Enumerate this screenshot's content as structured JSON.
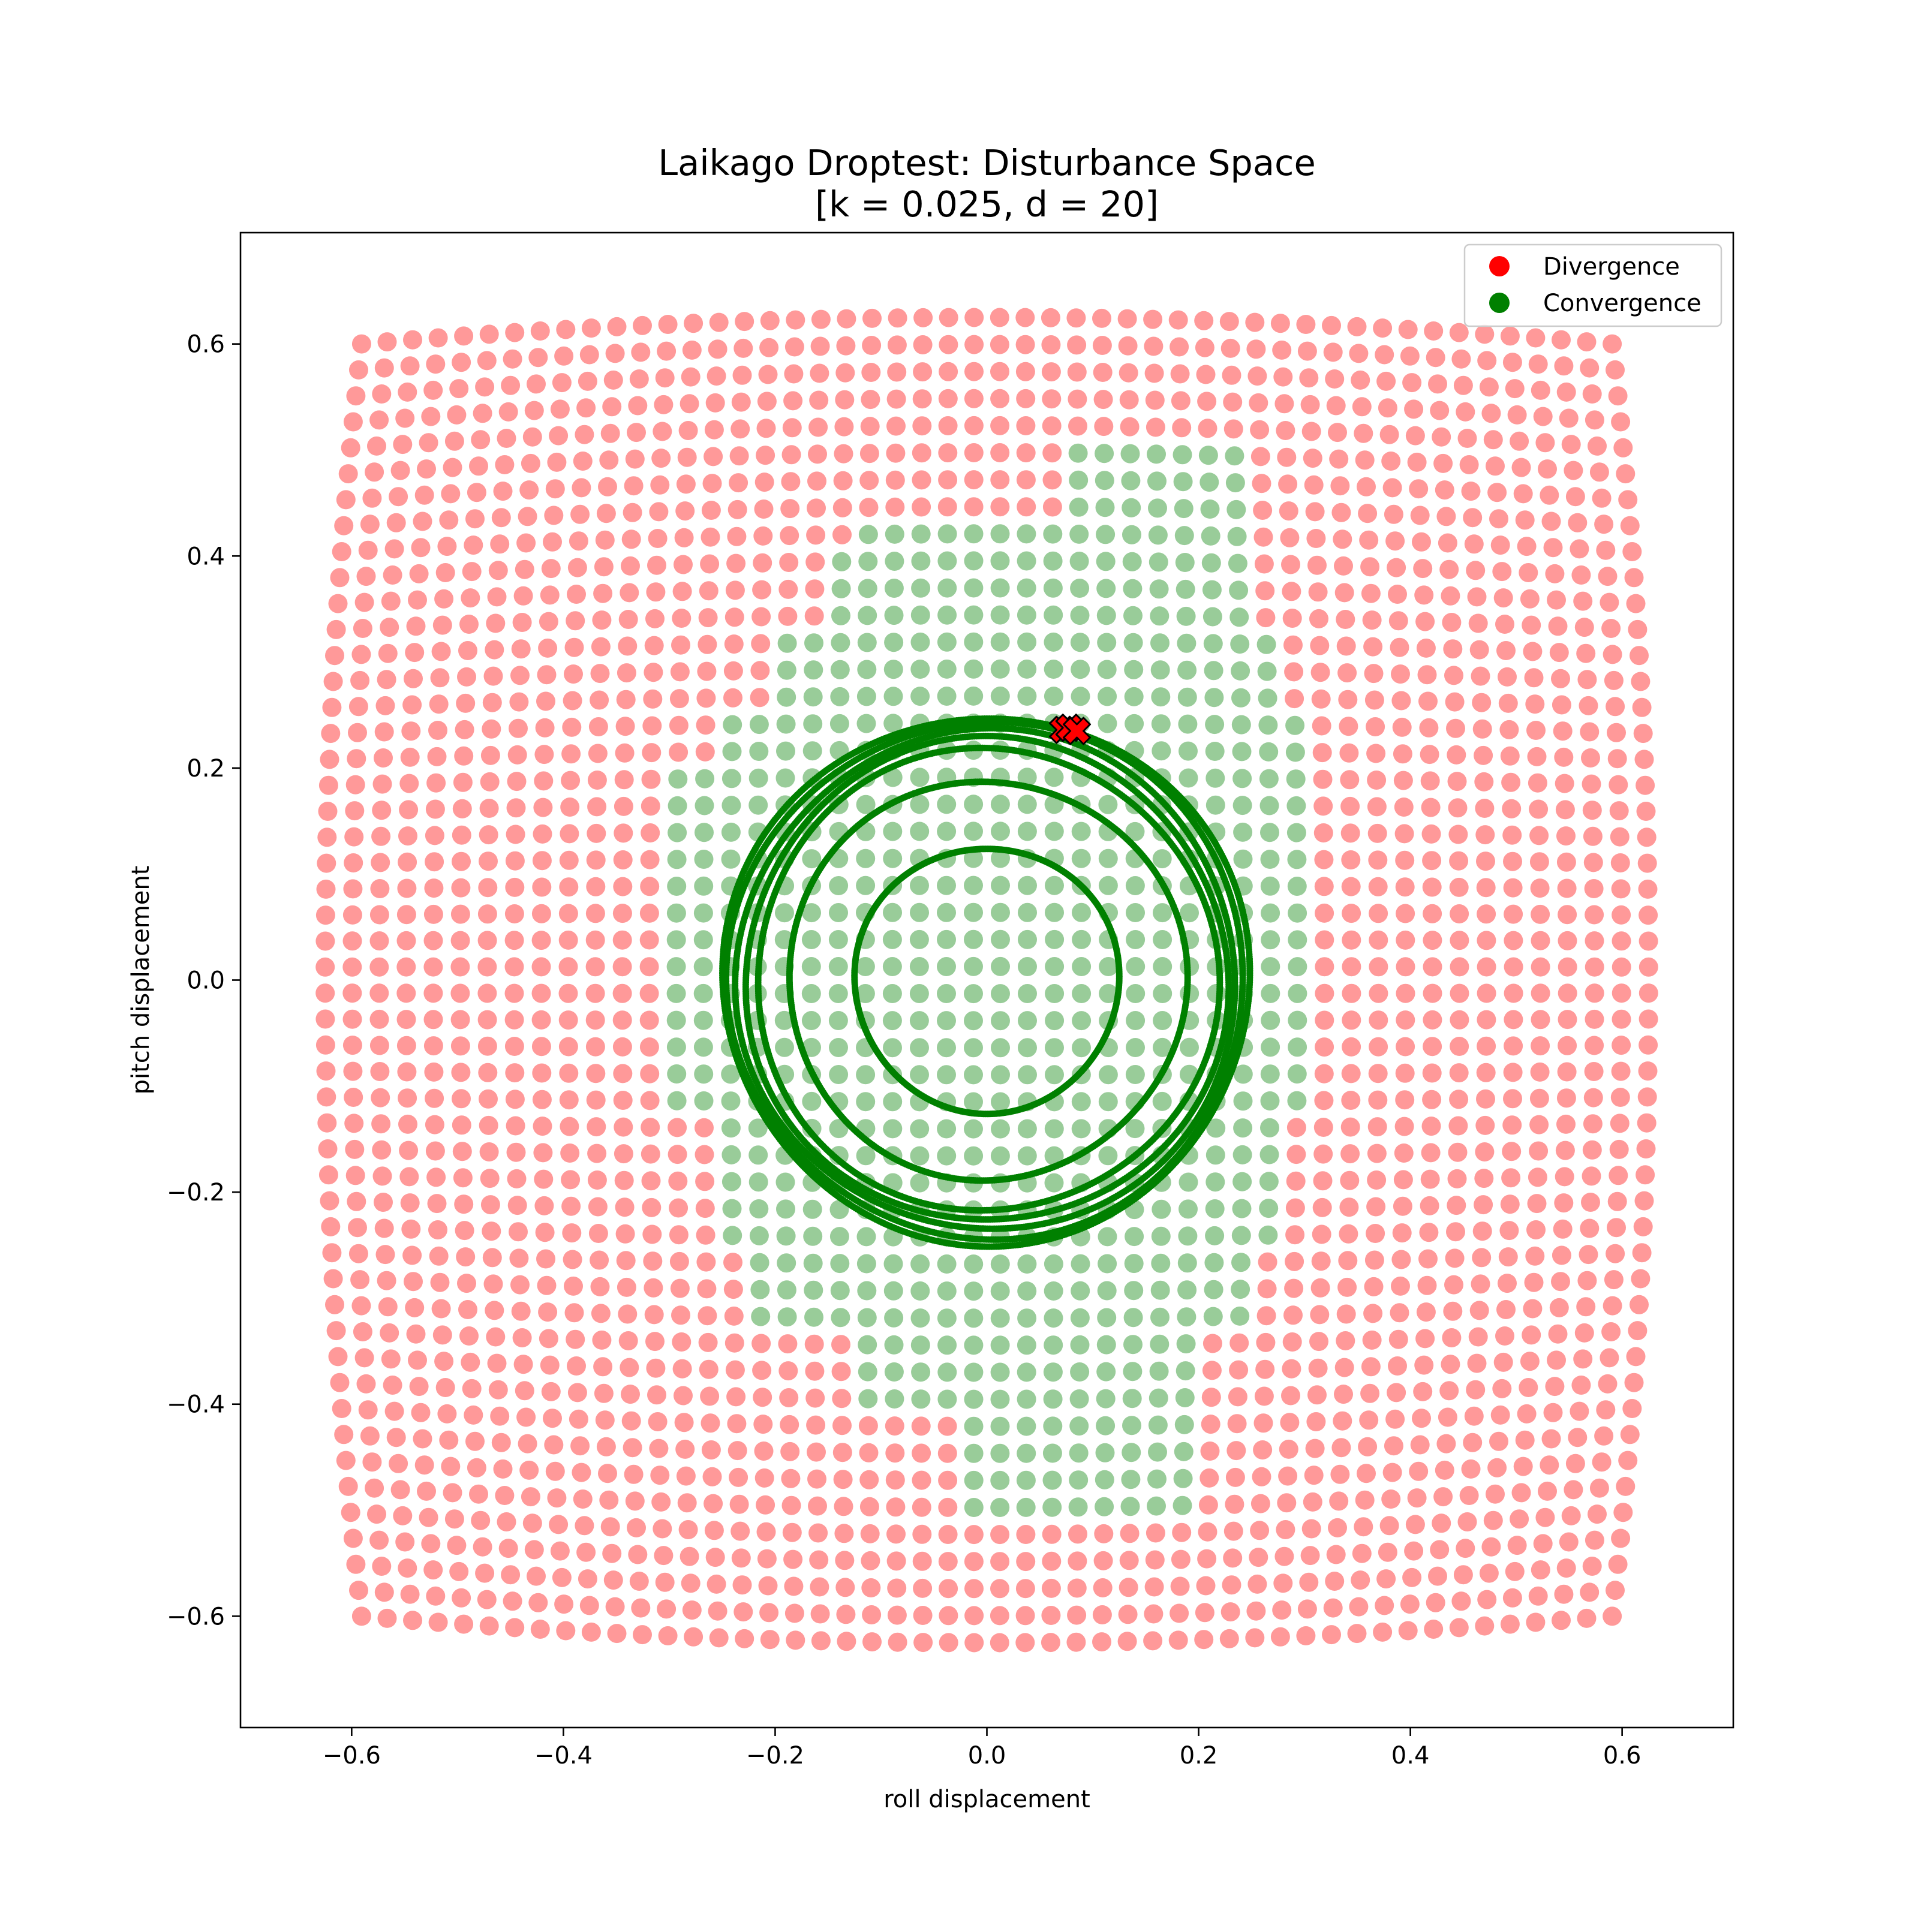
{
  "chart_data": {
    "type": "scatter",
    "title": "Laikago Droptest: Disturbance Space",
    "subtitle": "[k = 0.025, d = 20]",
    "xlabel": "roll displacement",
    "ylabel": "pitch displacement",
    "xlim": [
      -0.705,
      0.705
    ],
    "ylim": [
      -0.705,
      0.705
    ],
    "xticks": [
      -0.6,
      -0.4,
      -0.2,
      0.0,
      0.2,
      0.4,
      0.6
    ],
    "yticks": [
      -0.6,
      -0.4,
      -0.2,
      0.0,
      0.2,
      0.4,
      0.6
    ],
    "xtick_labels": [
      "−0.6",
      "−0.4",
      "−0.2",
      "0.0",
      "0.2",
      "0.4",
      "0.6"
    ],
    "ytick_labels": [
      "−0.6",
      "−0.4",
      "−0.2",
      "0.0",
      "0.2",
      "0.4",
      "0.6"
    ],
    "grid": false,
    "legend": {
      "position": "top-right",
      "entries": [
        {
          "label": "Divergence",
          "color": "#ff0000"
        },
        {
          "label": "Convergence",
          "color": "#008000"
        }
      ]
    },
    "colors": {
      "divergence_fill": "#ff9999",
      "convergence_fill": "#99cc99",
      "trajectory": "#008000",
      "marker": "#ff0000"
    },
    "grid_sampling": {
      "extent": 0.625,
      "count": 50,
      "pitch_range": [
        -0.6,
        0.6
      ]
    },
    "convergence_region": {
      "ry_rows": [
        [
          0.43,
          0.5
        ],
        [
          0.4,
          0.5
        ],
        [
          0.32,
          0.42
        ],
        [
          0.26,
          0.36
        ],
        [
          0.2,
          0.26
        ],
        [
          0.0,
          0.2
        ],
        [
          -0.12,
          0.0
        ],
        [
          -0.26,
          -0.12
        ],
        [
          -0.34,
          -0.26
        ],
        [
          -0.42,
          -0.34
        ],
        [
          -0.5,
          -0.42
        ]
      ]
    },
    "trajectory_rings": [
      {
        "radius": 0.125
      },
      {
        "radius": 0.188
      },
      {
        "radius": 0.218
      },
      {
        "radius": 0.228
      },
      {
        "radius": 0.236
      },
      {
        "radius": 0.244
      },
      {
        "radius": 0.249
      }
    ],
    "divergence_markers": [
      {
        "x": 0.072,
        "y": 0.236
      },
      {
        "x": 0.078,
        "y": 0.238
      },
      {
        "x": 0.085,
        "y": 0.235
      }
    ]
  }
}
